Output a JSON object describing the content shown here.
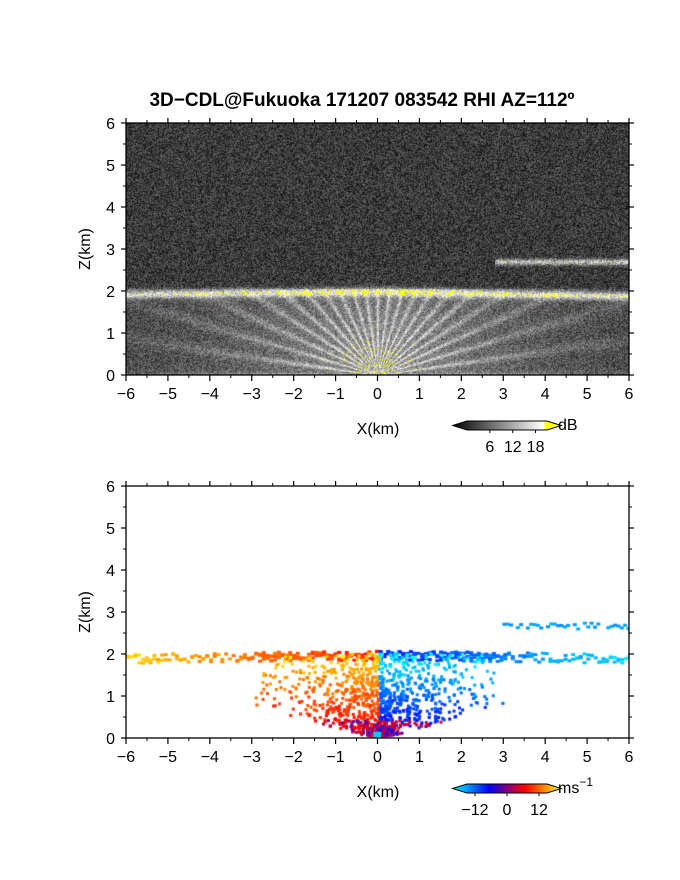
{
  "chart_data": [
    {
      "type": "heatmap",
      "title": "3D−CDL@Fukuoka 171207 083542 RHI AZ=112º",
      "xlabel": "X(km)",
      "ylabel": "Z(km)",
      "xlim": [
        -6,
        6
      ],
      "ylim": [
        0,
        6
      ],
      "x_ticks": [
        "−6",
        "−5",
        "−4",
        "−3",
        "−2",
        "−1",
        "0",
        "1",
        "2",
        "3",
        "4",
        "5",
        "6"
      ],
      "y_ticks": [
        "0",
        "1",
        "2",
        "3",
        "4",
        "5",
        "6"
      ],
      "colorbar": {
        "unit": "dB",
        "ticks": [
          "6",
          "12",
          "18"
        ],
        "range": [
          0,
          21
        ],
        "colors": [
          "#000000",
          "#ffffff",
          "#ffff00"
        ]
      },
      "features": [
        {
          "name": "cloud base layer",
          "x_range": [
            -6,
            6
          ],
          "z": 2.0
        },
        {
          "name": "upper layer",
          "x_range": [
            2.8,
            6
          ],
          "z": 2.7
        },
        {
          "name": "clear-air fan",
          "x_range": [
            -3.5,
            3.5
          ],
          "z_range": [
            0,
            2
          ]
        }
      ]
    },
    {
      "type": "heatmap",
      "xlabel": "X(km)",
      "ylabel": "Z(km)",
      "xlim": [
        -6,
        6
      ],
      "ylim": [
        0,
        6
      ],
      "x_ticks": [
        "−6",
        "−5",
        "−4",
        "−3",
        "−2",
        "−1",
        "0",
        "1",
        "2",
        "3",
        "4",
        "5",
        "6"
      ],
      "y_ticks": [
        "0",
        "1",
        "2",
        "3",
        "4",
        "5",
        "6"
      ],
      "colorbar": {
        "unit": "ms",
        "unit_exponent": "−1",
        "ticks": [
          "−12",
          "0",
          "12"
        ],
        "range": [
          -15,
          15
        ],
        "colors": [
          "#00ffff",
          "#0000ff",
          "#ff0000",
          "#ffff00"
        ]
      },
      "features": [
        {
          "name": "receding (positive) velocity",
          "x_range": [
            -6,
            0
          ],
          "z_range": [
            0.1,
            2.1
          ]
        },
        {
          "name": "approaching (negative) velocity",
          "x_range": [
            0,
            6
          ],
          "z_range": [
            0.1,
            2.7
          ]
        }
      ]
    }
  ]
}
